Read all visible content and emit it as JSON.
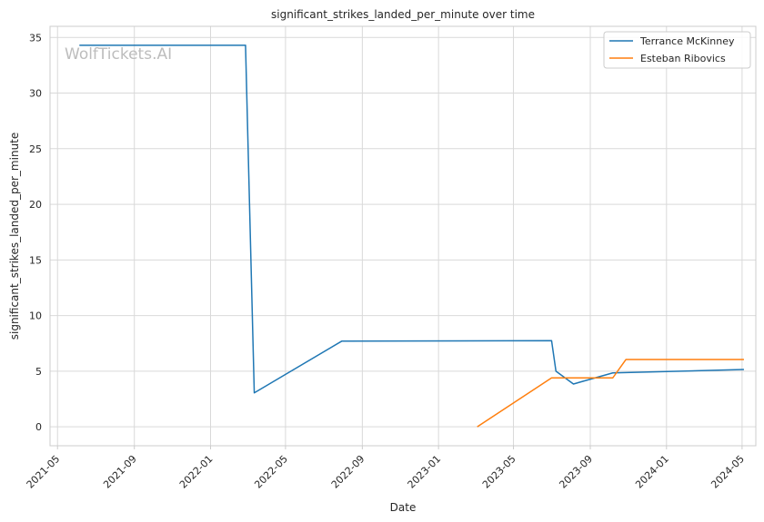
{
  "chart_data": {
    "type": "line",
    "title": "significant_strikes_landed_per_minute over time",
    "xlabel": "Date",
    "ylabel": "significant_strikes_landed_per_minute",
    "x_tick_labels": [
      "2021-05",
      "2021-09",
      "2022-01",
      "2022-05",
      "2022-09",
      "2023-01",
      "2023-05",
      "2023-09",
      "2024-01",
      "2024-05"
    ],
    "x_tick_dates": [
      "2021-05-01",
      "2021-09-01",
      "2022-01-01",
      "2022-05-01",
      "2022-09-01",
      "2023-01-01",
      "2023-05-01",
      "2023-09-01",
      "2024-01-01",
      "2024-05-01"
    ],
    "xlim": [
      "2021-04-19",
      "2024-05-23"
    ],
    "y_ticks": [
      0,
      5,
      10,
      15,
      20,
      25,
      30,
      35
    ],
    "ylim": [
      -1.7,
      36.0
    ],
    "grid": true,
    "legend_position": "top-right",
    "watermark": "WolfTickets.AI",
    "series": [
      {
        "name": "Terrance McKinney",
        "color": "#1f77b4",
        "points": [
          {
            "x": "2021-06-05",
            "y": 34.3
          },
          {
            "x": "2022-02-26",
            "y": 34.3
          },
          {
            "x": "2022-03-12",
            "y": 3.05
          },
          {
            "x": "2022-07-30",
            "y": 7.7
          },
          {
            "x": "2023-07-01",
            "y": 7.75
          },
          {
            "x": "2023-07-08",
            "y": 5.0
          },
          {
            "x": "2023-08-05",
            "y": 3.85
          },
          {
            "x": "2023-10-07",
            "y": 4.85
          },
          {
            "x": "2024-05-04",
            "y": 5.15
          }
        ]
      },
      {
        "name": "Esteban Ribovics",
        "color": "#ff7f0e",
        "points": [
          {
            "x": "2023-03-04",
            "y": 0.0
          },
          {
            "x": "2023-07-01",
            "y": 4.4
          },
          {
            "x": "2023-10-07",
            "y": 4.4
          },
          {
            "x": "2023-10-28",
            "y": 6.05
          },
          {
            "x": "2024-05-04",
            "y": 6.05
          }
        ]
      }
    ]
  }
}
